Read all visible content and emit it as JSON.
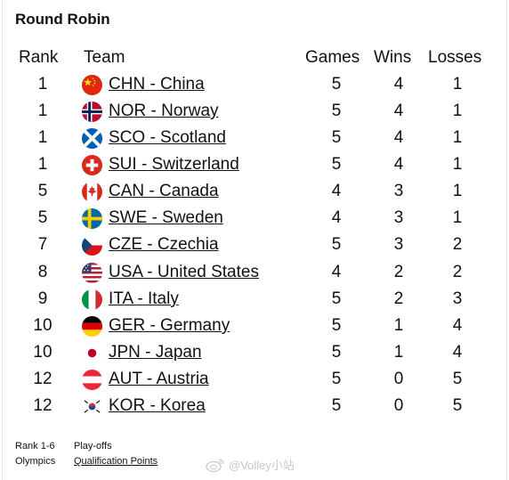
{
  "title": "Round Robin",
  "columns": {
    "rank": "Rank",
    "team": "Team",
    "games": "Games",
    "wins": "Wins",
    "losses": "Losses"
  },
  "rows": [
    {
      "rank": "1",
      "team": "CHN - China",
      "games": "5",
      "wins": "4",
      "losses": "1",
      "flag": "china-flag-icon"
    },
    {
      "rank": "1",
      "team": "NOR - Norway",
      "games": "5",
      "wins": "4",
      "losses": "1",
      "flag": "norway-flag-icon"
    },
    {
      "rank": "1",
      "team": "SCO - Scotland",
      "games": "5",
      "wins": "4",
      "losses": "1",
      "flag": "scotland-flag-icon"
    },
    {
      "rank": "1",
      "team": "SUI - Switzerland",
      "games": "5",
      "wins": "4",
      "losses": "1",
      "flag": "switzerland-flag-icon"
    },
    {
      "rank": "5",
      "team": "CAN - Canada",
      "games": "4",
      "wins": "3",
      "losses": "1",
      "flag": "canada-flag-icon"
    },
    {
      "rank": "5",
      "team": "SWE - Sweden",
      "games": "4",
      "wins": "3",
      "losses": "1",
      "flag": "sweden-flag-icon"
    },
    {
      "rank": "7",
      "team": "CZE - Czechia",
      "games": "5",
      "wins": "3",
      "losses": "2",
      "flag": "czechia-flag-icon"
    },
    {
      "rank": "8",
      "team": "USA - United States",
      "games": "4",
      "wins": "2",
      "losses": "2",
      "flag": "usa-flag-icon"
    },
    {
      "rank": "9",
      "team": "ITA - Italy",
      "games": "5",
      "wins": "2",
      "losses": "3",
      "flag": "italy-flag-icon"
    },
    {
      "rank": "10",
      "team": "GER - Germany",
      "games": "5",
      "wins": "1",
      "losses": "4",
      "flag": "germany-flag-icon"
    },
    {
      "rank": "10",
      "team": "JPN - Japan",
      "games": "5",
      "wins": "1",
      "losses": "4",
      "flag": "japan-flag-icon"
    },
    {
      "rank": "12",
      "team": "AUT - Austria",
      "games": "5",
      "wins": "0",
      "losses": "5",
      "flag": "austria-flag-icon"
    },
    {
      "rank": "12",
      "team": "KOR - Korea",
      "games": "5",
      "wins": "0",
      "losses": "5",
      "flag": "korea-flag-icon"
    }
  ],
  "footer": {
    "rank_label": "Rank 1-6",
    "playoffs_label": "Play-offs",
    "olympics_label": "Olympics",
    "qualification_label": "Qualification Points"
  },
  "watermark": {
    "text": "@Volley小站",
    "icon": "weibo-logo-icon"
  },
  "colors": {
    "text": "#111111",
    "watermark": "#c9c9c9",
    "border": "#e5e5e5"
  }
}
